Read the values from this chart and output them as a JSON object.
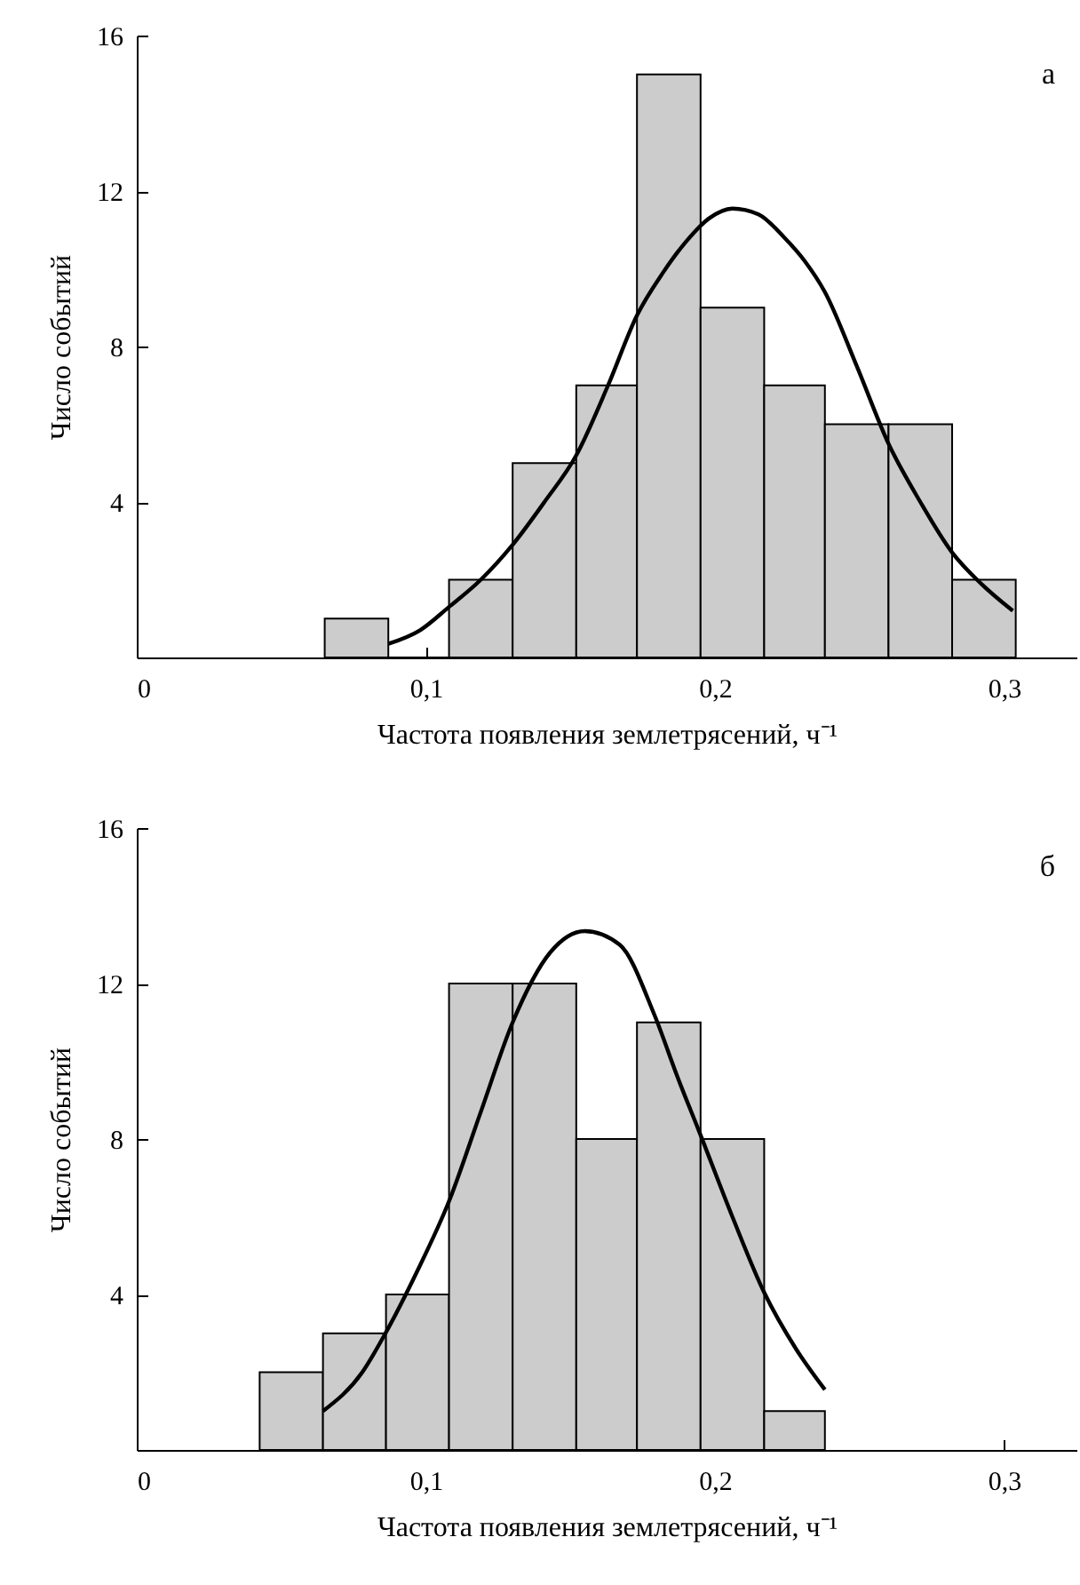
{
  "chart_data": [
    {
      "type": "histogram",
      "xlabel": "Частота появления землетрясений, ч⁻¹",
      "ylabel": "Число событий",
      "annotations": [
        "а"
      ],
      "xlim": [
        0,
        0.325
      ],
      "ylim": [
        0,
        16
      ],
      "xticks": [
        {
          "value": 0,
          "label": "0"
        },
        {
          "value": 0.1,
          "label": "0,1"
        },
        {
          "value": 0.2,
          "label": "0,2"
        },
        {
          "value": 0.3,
          "label": "0,3"
        }
      ],
      "yticks": [
        4,
        8,
        12,
        16
      ],
      "series": [
        {
          "color": "#cccccc",
          "bins": [
            0.065,
            0.087,
            0.108,
            0.13,
            0.152,
            0.173,
            0.195,
            0.217,
            0.238,
            0.26,
            0.282,
            0.304
          ],
          "values": [
            1,
            0,
            2,
            5,
            7,
            15,
            9,
            7,
            6,
            6,
            2
          ]
        },
        {
          "type": "line",
          "color": "#000000",
          "x": [
            0.087,
            0.098,
            0.108,
            0.119,
            0.13,
            0.141,
            0.152,
            0.163,
            0.173,
            0.182,
            0.19,
            0.198,
            0.206,
            0.215,
            0.224,
            0.231,
            0.238,
            0.249,
            0.26,
            0.271,
            0.282,
            0.292,
            0.303
          ],
          "values": [
            0.35,
            0.7,
            1.3,
            2.0,
            2.9,
            4.0,
            5.2,
            7.0,
            8.8,
            9.9,
            10.7,
            11.3,
            11.55,
            11.4,
            10.8,
            10.2,
            9.4,
            7.5,
            5.5,
            4.0,
            2.7,
            1.9,
            1.2
          ]
        }
      ]
    },
    {
      "type": "histogram",
      "xlabel": "Частота появления землетрясений, ч⁻¹",
      "ylabel": "Число событий",
      "annotations": [
        "б"
      ],
      "xlim": [
        0,
        0.325
      ],
      "ylim": [
        0,
        16
      ],
      "xticks": [
        {
          "value": 0,
          "label": "0"
        },
        {
          "value": 0.1,
          "label": "0,1"
        },
        {
          "value": 0.2,
          "label": "0,2"
        },
        {
          "value": 0.3,
          "label": "0,3"
        }
      ],
      "yticks": [
        4,
        8,
        12,
        16
      ],
      "series": [
        {
          "color": "#cccccc",
          "bins": [
            0.0425,
            0.0644,
            0.0862,
            0.108,
            0.13,
            0.152,
            0.173,
            0.195,
            0.217,
            0.238
          ],
          "values": [
            2,
            3,
            4,
            12,
            12,
            8,
            11,
            8,
            1
          ]
        },
        {
          "type": "line",
          "color": "#000000",
          "x": [
            0.0644,
            0.078,
            0.086,
            0.097,
            0.108,
            0.119,
            0.13,
            0.143,
            0.155,
            0.167,
            0.179,
            0.187,
            0.195,
            0.206,
            0.217,
            0.228,
            0.238
          ],
          "values": [
            1.0,
            2.0,
            3.0,
            4.6,
            6.4,
            8.7,
            11.0,
            12.8,
            13.35,
            13.0,
            11.2,
            9.6,
            8.1,
            6.0,
            4.05,
            2.6,
            1.55
          ]
        }
      ]
    }
  ]
}
